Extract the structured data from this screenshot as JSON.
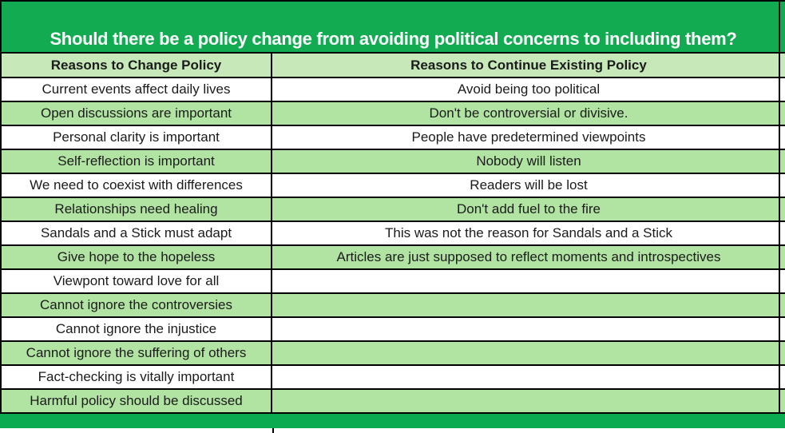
{
  "title": "Should there be a policy change from avoiding political concerns to including them?",
  "colors": {
    "title_band_green": "#12AB51",
    "bottom_bar_green": "#0BAC51",
    "column_header_green": "#C7E9BA",
    "row_green": "#B1E3A2",
    "row_white": "#FFFFFF",
    "border": "#000000",
    "title_text": "#FFFFFF",
    "cell_text": "#1B1B1B"
  },
  "table": {
    "columns": [
      "Reasons to Change Policy",
      "Reasons to Continue Existing Policy"
    ],
    "rows": [
      [
        "Current events affect daily lives",
        "Avoid being too political"
      ],
      [
        "Open discussions are important",
        "Don't be controversial or divisive."
      ],
      [
        "Personal clarity is important",
        "People have predetermined viewpoints"
      ],
      [
        "Self-reflection is important",
        "Nobody will listen"
      ],
      [
        "We need to coexist with differences",
        "Readers will be lost"
      ],
      [
        "Relationships need healing",
        "Don't add fuel to the fire"
      ],
      [
        "Sandals and a Stick must adapt",
        "This was not the reason for Sandals and a Stick"
      ],
      [
        "Give hope to the hopeless",
        "Articles are just supposed to reflect moments and introspectives"
      ],
      [
        "Viewpont toward love for all",
        ""
      ],
      [
        "Cannot ignore the controversies",
        ""
      ],
      [
        "Cannot ignore the injustice",
        ""
      ],
      [
        "Cannot ignore the suffering of others",
        ""
      ],
      [
        "Fact-checking is vitally important",
        ""
      ],
      [
        "Harmful policy should be discussed",
        ""
      ]
    ]
  }
}
